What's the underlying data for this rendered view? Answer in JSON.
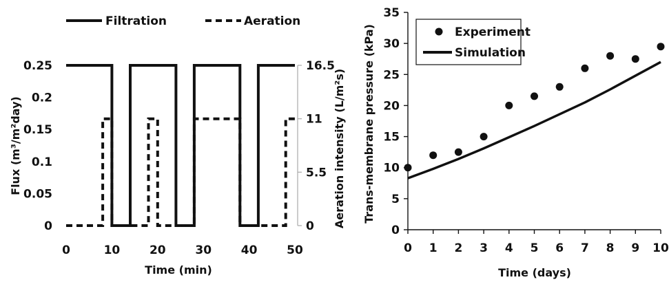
{
  "chart_data": [
    {
      "type": "line",
      "xlabel": "Time (min)",
      "ylabel": "Flux (m³/m²day)",
      "y2label": "Aeration intensity (L/m²s)",
      "xlim": [
        0,
        50
      ],
      "ylim": [
        0,
        0.25
      ],
      "y2lim": [
        0,
        16.5
      ],
      "xticks": [
        "0",
        "10",
        "20",
        "30",
        "40",
        "50"
      ],
      "yticks": [
        "0",
        "0.05",
        "0.1",
        "0.15",
        "0.2",
        "0.25"
      ],
      "y2ticks": [
        "0",
        "5.5",
        "11",
        "16.5"
      ],
      "grid": false,
      "legend_position": "top",
      "series": [
        {
          "name": "Filtration",
          "style": "solid",
          "axis": "left",
          "x": [
            0,
            10,
            10,
            14,
            14,
            24,
            24,
            28,
            28,
            38,
            38,
            42,
            42,
            50
          ],
          "y": [
            0.25,
            0.25,
            0,
            0,
            0.25,
            0.25,
            0,
            0,
            0.25,
            0.25,
            0,
            0,
            0.25,
            0.25
          ]
        },
        {
          "name": "Aeration",
          "style": "dashed",
          "axis": "right",
          "x": [
            0,
            8,
            8,
            10,
            10,
            18,
            18,
            20,
            20,
            28,
            28,
            38,
            38,
            40,
            40,
            48,
            48,
            50
          ],
          "y": [
            0,
            0,
            11,
            11,
            0,
            0,
            11,
            11,
            0,
            0,
            11,
            11,
            0,
            0,
            0,
            0,
            11,
            11
          ]
        }
      ]
    },
    {
      "type": "scatter",
      "xlabel": "Time (days)",
      "ylabel": "Trans-membrane pressure (kPa)",
      "xlim": [
        0,
        10
      ],
      "ylim": [
        0,
        35
      ],
      "xticks": [
        "0",
        "1",
        "2",
        "3",
        "4",
        "5",
        "6",
        "7",
        "8",
        "9",
        "10"
      ],
      "yticks": [
        "0",
        "5",
        "10",
        "15",
        "20",
        "25",
        "30",
        "35"
      ],
      "grid": false,
      "legend_position": "top-left",
      "series": [
        {
          "name": "Experiment",
          "style": "markers",
          "x": [
            0,
            1,
            2,
            3,
            4,
            5,
            6,
            7,
            8,
            9,
            10
          ],
          "y": [
            10,
            12,
            12.5,
            15,
            20,
            21.5,
            23,
            26,
            28,
            27.5,
            29.5
          ]
        },
        {
          "name": "Simulation",
          "style": "solid",
          "x": [
            0,
            1,
            2,
            3,
            4,
            5,
            6,
            7,
            8,
            9,
            10
          ],
          "y": [
            8.3,
            9.8,
            11.4,
            13.1,
            14.9,
            16.7,
            18.6,
            20.5,
            22.6,
            24.8,
            27
          ]
        }
      ]
    }
  ]
}
